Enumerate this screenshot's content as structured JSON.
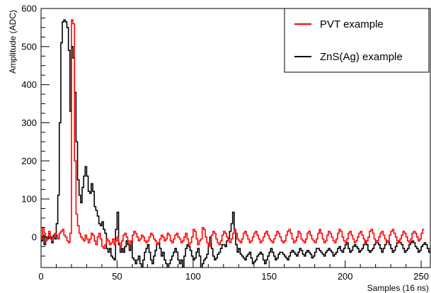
{
  "chart_data": {
    "type": "line",
    "step": true,
    "title": "",
    "xlabel": "Samples (16 ns)",
    "ylabel": "Amplitude (ADC)",
    "xlim": [
      0,
      256
    ],
    "ylim": [
      -80,
      600
    ],
    "x_ticks": [
      0,
      50,
      100,
      150,
      200,
      250
    ],
    "y_ticks": [
      0,
      100,
      200,
      300,
      400,
      500,
      600
    ],
    "grid": false,
    "legend_position": "top-right",
    "series": [
      {
        "name": "ZnS(Ag) example",
        "color": "#000000",
        "values": [
          -10,
          5,
          -20,
          0,
          -5,
          8,
          0,
          -15,
          5,
          -5,
          35,
          110,
          300,
          510,
          565,
          570,
          565,
          550,
          490,
          330,
          500,
          470,
          380,
          250,
          150,
          110,
          90,
          130,
          160,
          185,
          160,
          120,
          115,
          140,
          120,
          80,
          70,
          55,
          35,
          30,
          40,
          20,
          10,
          -30,
          -40,
          -30,
          -50,
          -55,
          -60,
          20,
          65,
          -20,
          -40,
          -30,
          -40,
          -25,
          -10,
          -20,
          -35,
          -10,
          -55,
          -60,
          -70,
          -60,
          -50,
          -70,
          -80,
          -60,
          -40,
          -30,
          -20,
          -40,
          -60,
          -70,
          -50,
          -35,
          -20,
          -15,
          -30,
          -50,
          -40,
          -60,
          -70,
          -80,
          -70,
          -60,
          -50,
          -40,
          -30,
          -40,
          -60,
          -70,
          -60,
          -80,
          -50,
          -30,
          -20,
          -25,
          -35,
          -50,
          -60,
          -55,
          -40,
          -30,
          -50,
          -80,
          -70,
          -60,
          -55,
          -45,
          -20,
          0,
          -30,
          -50,
          -60,
          -55,
          -45,
          -40,
          -30,
          -20,
          -20,
          -25,
          -10,
          -5,
          15,
          35,
          65,
          20,
          -20,
          -40,
          -30,
          -45,
          -50,
          -55,
          -60,
          -50,
          -45,
          -40,
          -55,
          -70,
          -65,
          -60,
          -50,
          -45,
          -40,
          -45,
          -60,
          -70,
          -60,
          -50,
          -40,
          -30,
          -40,
          -50,
          -60,
          -55,
          -45,
          -40,
          -40,
          -45,
          -50,
          -55,
          -60,
          -50,
          -40,
          -35,
          -40,
          -45,
          -50,
          -40,
          -30,
          -35,
          -45,
          -50,
          -40,
          -35,
          -40,
          -45,
          -55,
          -50,
          -40,
          -30,
          -30,
          -35,
          -40,
          -45,
          -50,
          -40,
          -35,
          -30,
          -35,
          -40,
          -50,
          -45,
          -40,
          -30,
          -25,
          -35,
          -40,
          -30,
          -20,
          -15,
          -30,
          -40,
          -35,
          -25,
          -20,
          -25,
          -30,
          -40,
          -35,
          -30,
          -20,
          -10,
          -20,
          -35,
          -40,
          -35,
          -30,
          -20,
          -10,
          -15,
          -20,
          -30,
          -40,
          -30,
          -20,
          -10,
          -10,
          -20,
          -30,
          -40,
          -35,
          -25,
          -15,
          -10,
          -15,
          -20,
          -30,
          -40,
          -35,
          -30,
          -20,
          -15,
          -10,
          -15,
          -25,
          -30,
          -40,
          -35,
          -25,
          -20,
          -15,
          -20,
          -30,
          -40,
          -30,
          -20
        ]
      },
      {
        "name": "PVT example",
        "color": "#ff0000",
        "values": [
          -5,
          25,
          10,
          -10,
          0,
          15,
          -5,
          -10,
          0,
          10,
          5,
          -5,
          10,
          15,
          20,
          5,
          0,
          -10,
          -15,
          10,
          570,
          560,
          200,
          60,
          30,
          10,
          0,
          -5,
          -10,
          5,
          -5,
          -15,
          -5,
          10,
          5,
          -10,
          -20,
          0,
          10,
          -5,
          -25,
          -30,
          -20,
          -5,
          -10,
          -20,
          -15,
          -5,
          -20,
          -10,
          0,
          -15,
          -25,
          -10,
          5,
          10,
          0,
          -10,
          -20,
          -10,
          5,
          15,
          10,
          0,
          -10,
          -5,
          5,
          0,
          -10,
          -15,
          -10,
          0,
          10,
          5,
          -5,
          -10,
          -20,
          -15,
          -5,
          5,
          0,
          -10,
          -5,
          10,
          5,
          -10,
          -15,
          -5,
          5,
          10,
          0,
          -5,
          -15,
          -10,
          0,
          10,
          -5,
          -20,
          -15,
          0,
          20,
          15,
          -5,
          -20,
          -10,
          -5,
          25,
          20,
          0,
          -15,
          -25,
          -15,
          5,
          15,
          10,
          -5,
          -15,
          -20,
          -10,
          5,
          15,
          10,
          0,
          -10,
          -15,
          -5,
          10,
          20,
          10,
          -5,
          -10,
          -15,
          -5,
          10,
          15,
          5,
          -5,
          -15,
          -10,
          0,
          10,
          15,
          5,
          -5,
          -15,
          -10,
          0,
          10,
          15,
          5,
          -5,
          -10,
          -15,
          -5,
          5,
          15,
          10,
          0,
          -10,
          -15,
          -10,
          5,
          15,
          20,
          10,
          -5,
          -15,
          -10,
          0,
          15,
          10,
          -5,
          -10,
          -15,
          -5,
          10,
          15,
          5,
          -5,
          -10,
          -15,
          -5,
          10,
          20,
          10,
          -5,
          -15,
          -10,
          5,
          15,
          10,
          0,
          -10,
          -15,
          -5,
          10,
          20,
          15,
          0,
          -10,
          -15,
          -5,
          10,
          15,
          5,
          -5,
          -15,
          -10,
          0,
          10,
          15,
          5,
          -5,
          -15,
          -10,
          0,
          15,
          20,
          10,
          -5,
          -15,
          -10,
          0,
          10,
          15,
          5,
          -5,
          -15,
          -10,
          5,
          15,
          20,
          10,
          0,
          -10,
          -15,
          -5,
          5,
          15,
          10,
          0,
          -10,
          -15,
          -5,
          10,
          15,
          10,
          0,
          -10,
          -5,
          10,
          20
        ]
      }
    ]
  }
}
